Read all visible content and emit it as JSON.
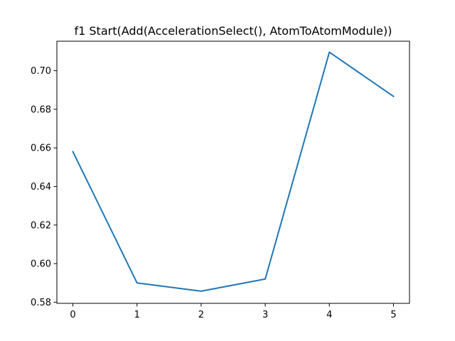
{
  "chart_data": {
    "type": "line",
    "title": "f1 Start(Add(AccelerationSelect(), AtomToAtomModule))",
    "xlabel": "",
    "ylabel": "",
    "x": [
      0,
      1,
      2,
      3,
      4,
      5
    ],
    "series": [
      {
        "values": [
          0.658,
          0.59,
          0.5857,
          0.592,
          0.7096,
          0.6867
        ],
        "color": "#1f77b4"
      }
    ],
    "xlim": [
      -0.25,
      5.25
    ],
    "ylim": [
      0.5794,
      0.7153
    ],
    "xticks": [
      0,
      1,
      2,
      3,
      4,
      5
    ],
    "xtick_labels": [
      "0",
      "1",
      "2",
      "3",
      "4",
      "5"
    ],
    "yticks": [
      0.58,
      0.6,
      0.62,
      0.64,
      0.66,
      0.68,
      0.7
    ],
    "ytick_labels": [
      "0.58",
      "0.60",
      "0.62",
      "0.64",
      "0.66",
      "0.68",
      "0.70"
    ],
    "grid": false,
    "legend": "none"
  }
}
